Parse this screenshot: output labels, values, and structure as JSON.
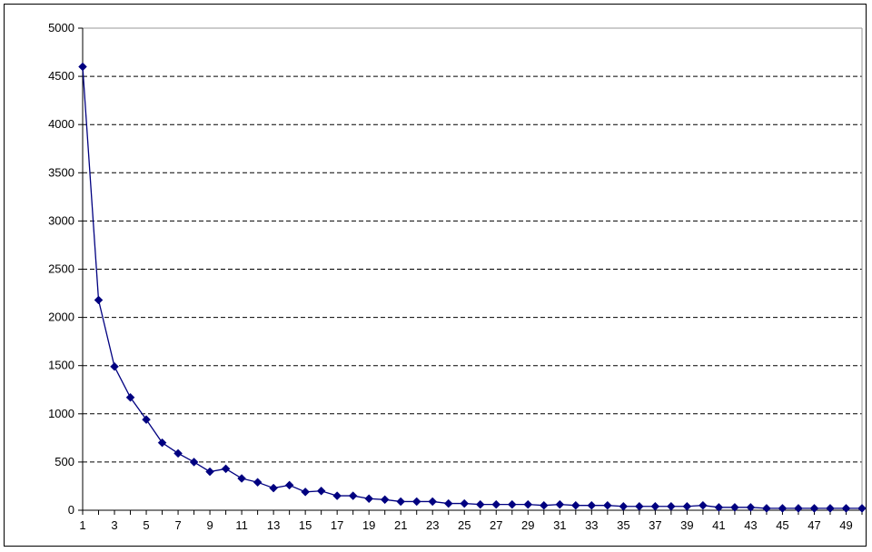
{
  "chart_data": {
    "type": "line",
    "title": "",
    "xlabel": "",
    "ylabel": "",
    "x": [
      1,
      2,
      3,
      4,
      5,
      6,
      7,
      8,
      9,
      10,
      11,
      12,
      13,
      14,
      15,
      16,
      17,
      18,
      19,
      20,
      21,
      22,
      23,
      24,
      25,
      26,
      27,
      28,
      29,
      30,
      31,
      32,
      33,
      34,
      35,
      36,
      37,
      38,
      39,
      40,
      41,
      42,
      43,
      44,
      45,
      46,
      47,
      48,
      49,
      50
    ],
    "x_tick_labels": [
      "1",
      "3",
      "5",
      "7",
      "9",
      "11",
      "13",
      "15",
      "17",
      "19",
      "21",
      "23",
      "25",
      "27",
      "29",
      "31",
      "33",
      "35",
      "37",
      "39",
      "41",
      "43",
      "45",
      "47",
      "49"
    ],
    "y_tick_labels": [
      "0",
      "500",
      "1000",
      "1500",
      "2000",
      "2500",
      "3000",
      "3500",
      "4000",
      "4500",
      "5000"
    ],
    "ylim": [
      0,
      5000
    ],
    "xlim": [
      1,
      50
    ],
    "grid": "horizontal-dashed",
    "legend": "none",
    "series": [
      {
        "color": "#000080",
        "marker": "diamond",
        "values": [
          4600,
          2180,
          1490,
          1170,
          940,
          700,
          590,
          500,
          400,
          430,
          330,
          290,
          230,
          260,
          190,
          200,
          150,
          150,
          120,
          110,
          90,
          90,
          90,
          70,
          70,
          60,
          60,
          60,
          60,
          50,
          60,
          50,
          50,
          50,
          40,
          40,
          40,
          40,
          40,
          50,
          30,
          30,
          30,
          20,
          20,
          20,
          20,
          20,
          20,
          20
        ]
      }
    ]
  }
}
